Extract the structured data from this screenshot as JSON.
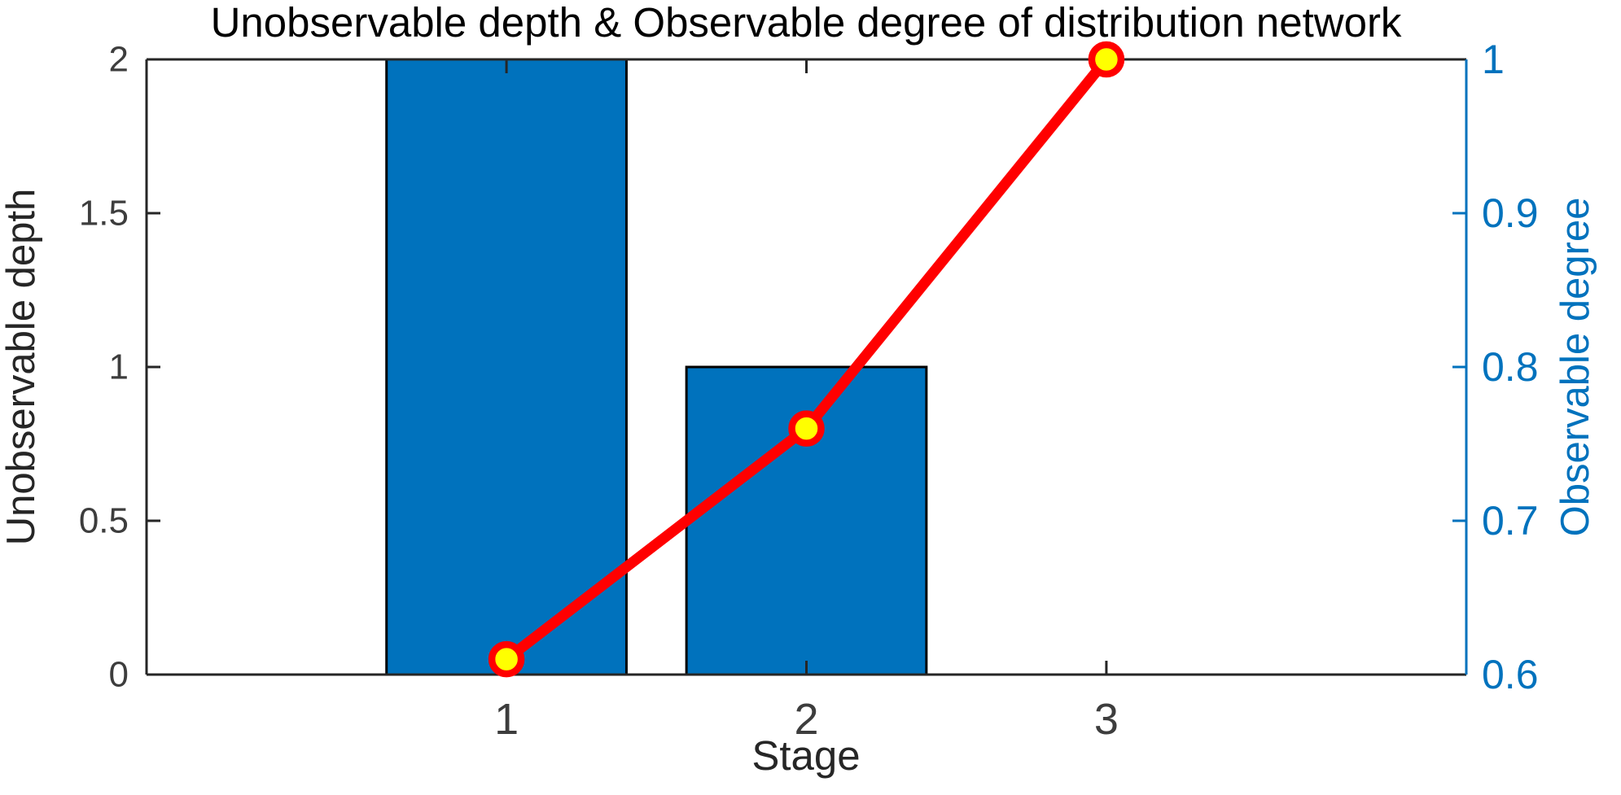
{
  "chart_data": {
    "type": "bar",
    "title": "Unobservable depth & Observable degree of distribution network",
    "categories": [
      1,
      2,
      3
    ],
    "series": [
      {
        "name": "Unobservable depth",
        "type": "bar",
        "yaxis": "left",
        "values": [
          2,
          1,
          0
        ],
        "fill": "#0072BD",
        "edge": "#000000"
      },
      {
        "name": "Observable degree",
        "type": "line",
        "yaxis": "right",
        "values": [
          0.61,
          0.76,
          1
        ],
        "color": "#FF0000",
        "marker": {
          "shape": "circle",
          "fill": "#FFFF00",
          "edge": "#FF0000"
        }
      }
    ],
    "x_axis": {
      "label": "Stage",
      "ticks": [
        "1",
        "2",
        "3"
      ],
      "tick_values": [
        1,
        2,
        3
      ],
      "xlim": [
        -0.2,
        4.2
      ],
      "color": "#262626",
      "tick_label_color": "#3D3D3D"
    },
    "left_axis": {
      "label": "Unobservable depth",
      "ticks": [
        "0",
        "0.5",
        "1",
        "1.5",
        "2"
      ],
      "tick_values": [
        0,
        0.5,
        1,
        1.5,
        2
      ],
      "ylim": [
        0,
        2
      ],
      "color": "#262626",
      "tick_label_color": "#3D3D3D"
    },
    "right_axis": {
      "label": "Observable degree",
      "ticks": [
        "0.6",
        "0.7",
        "0.8",
        "0.9",
        "1"
      ],
      "tick_values": [
        0.6,
        0.7,
        0.8,
        0.9,
        1
      ],
      "ylim": [
        0.6,
        1
      ],
      "color": "#0072BD",
      "tick_label_color": "#0072BD"
    },
    "grid": false,
    "legend": null,
    "title_color": "#000000",
    "background": "#FFFFFF"
  }
}
